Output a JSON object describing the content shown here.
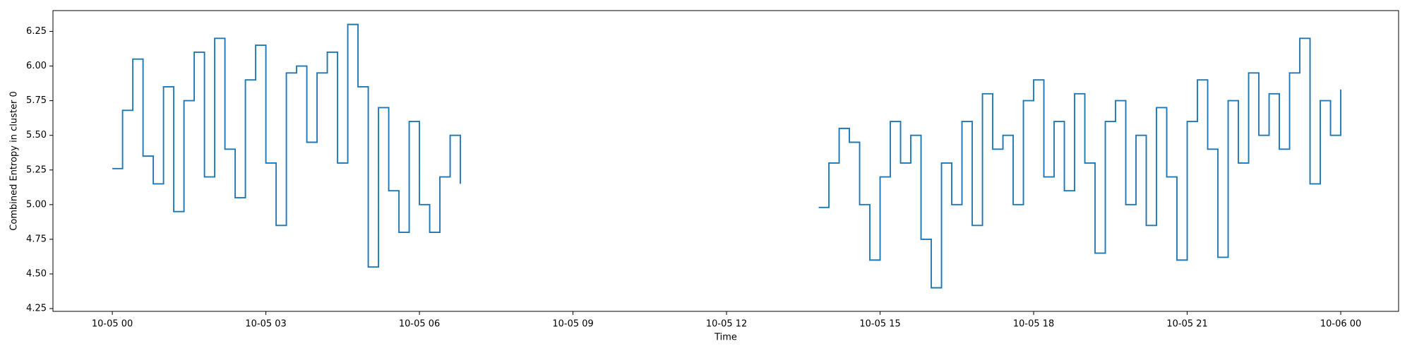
{
  "chart_data": {
    "type": "line",
    "drawstyle": "steps-post",
    "xlabel": "Time",
    "ylabel": "Combined Entropy in cluster 0",
    "xlim": [
      -1.16,
      25.13
    ],
    "ylim": [
      4.23,
      6.4
    ],
    "xticks": [
      {
        "value": 0,
        "label": "10-05 00"
      },
      {
        "value": 3,
        "label": "10-05 03"
      },
      {
        "value": 6,
        "label": "10-05 06"
      },
      {
        "value": 9,
        "label": "10-05 09"
      },
      {
        "value": 12,
        "label": "10-05 12"
      },
      {
        "value": 15,
        "label": "10-05 15"
      },
      {
        "value": 18,
        "label": "10-05 18"
      },
      {
        "value": 21,
        "label": "10-05 21"
      },
      {
        "value": 24,
        "label": "10-06 00"
      }
    ],
    "yticks": [
      4.25,
      {
        "value": 4.5,
        "label": "4.50"
      },
      4.75,
      {
        "value": 5,
        "label": "5.00"
      },
      5.25,
      {
        "value": 5.5,
        "label": "5.50"
      },
      5.75,
      {
        "value": 6,
        "label": "6.00"
      },
      6.25
    ],
    "series": [
      {
        "color": "#1f77b4",
        "x": [
          0,
          0.2,
          0.4,
          0.6,
          0.8,
          1.0,
          1.2,
          1.4,
          1.6,
          1.8,
          2.0,
          2.2,
          2.4,
          2.6,
          2.8,
          3.0,
          3.2,
          3.4,
          3.6,
          3.8,
          4.0,
          4.2,
          4.4,
          4.6,
          4.8,
          5.0,
          5.2,
          5.4,
          5.6,
          5.8,
          6.0,
          6.2,
          6.4,
          6.6,
          6.8,
          10,
          13.8,
          14.0,
          14.2,
          14.4,
          14.6,
          14.8,
          15.0,
          15.2,
          15.4,
          15.6,
          15.8,
          16.0,
          16.2,
          16.4,
          16.6,
          16.8,
          17.0,
          17.2,
          17.4,
          17.6,
          17.8,
          18.0,
          18.2,
          18.4,
          18.6,
          18.8,
          19.0,
          19.2,
          19.4,
          19.6,
          19.8,
          20.0,
          20.2,
          20.4,
          20.6,
          20.8,
          21.0,
          21.2,
          21.4,
          21.6,
          21.8,
          22.0,
          22.2,
          22.4,
          22.6,
          22.8,
          23.0,
          23.2,
          23.4,
          23.6,
          23.8,
          24.0
        ],
        "values": [
          5.26,
          5.68,
          6.05,
          5.35,
          5.15,
          5.85,
          4.95,
          5.75,
          6.1,
          5.2,
          6.2,
          5.4,
          5.05,
          5.9,
          6.15,
          5.3,
          4.85,
          5.95,
          6.0,
          5.45,
          5.95,
          6.1,
          5.3,
          6.3,
          5.85,
          4.55,
          5.7,
          5.1,
          4.8,
          5.6,
          5.0,
          4.8,
          5.2,
          5.5,
          5.15,
          null,
          4.98,
          5.3,
          5.55,
          5.45,
          5.0,
          4.6,
          5.2,
          5.6,
          5.3,
          5.5,
          4.75,
          4.4,
          5.3,
          5.0,
          5.6,
          4.85,
          5.8,
          5.4,
          5.5,
          5.0,
          5.75,
          5.9,
          5.2,
          5.6,
          5.1,
          5.8,
          5.3,
          4.65,
          5.6,
          5.75,
          5.0,
          5.5,
          4.85,
          5.7,
          5.2,
          4.6,
          5.6,
          5.9,
          5.4,
          4.62,
          5.75,
          5.3,
          5.95,
          5.5,
          5.8,
          5.4,
          5.95,
          6.2,
          5.15,
          5.75,
          5.5,
          5.83
        ]
      }
    ]
  }
}
